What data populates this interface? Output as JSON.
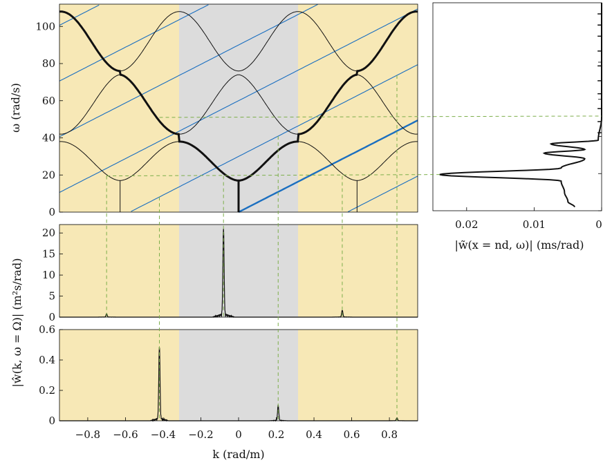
{
  "chart_data": [
    {
      "id": "dispersion",
      "type": "line",
      "xlim": [
        -0.95,
        0.95
      ],
      "ylim": [
        0,
        112
      ],
      "xlabel": "",
      "ylabel": "ω (rad/s)",
      "yticks": [
        0,
        20,
        40,
        60,
        80,
        100
      ],
      "band_edges": [
        -0.3142,
        0.3142
      ],
      "colors": {
        "passband": "#f7e8b6",
        "brillouin_zone": "#dcdcdc",
        "lines": "#1b6fc0",
        "curves": "#111111",
        "guides": "#7cae4a"
      },
      "bands": [
        {
          "k": [
            0,
            0.314
          ],
          "omega": [
            17,
            38
          ]
        },
        {
          "k": [
            0,
            0.314
          ],
          "omega": [
            74,
            42
          ]
        },
        {
          "k": [
            0,
            0.314
          ],
          "omega": [
            76,
            108
          ]
        }
      ],
      "blue_lines_slope": 52,
      "blue_lines_intercepts": [
        -60,
        -30,
        0,
        30,
        60,
        90,
        120,
        150
      ],
      "highlighted_line": {
        "intercept": 0
      }
    },
    {
      "id": "spectrum_top",
      "type": "line",
      "xlim": [
        -0.95,
        0.95
      ],
      "ylim": [
        0,
        22
      ],
      "yticks": [
        0,
        5,
        10,
        15,
        20
      ],
      "peaks": [
        {
          "k": -0.7,
          "value": 0.8
        },
        {
          "k": -0.08,
          "value": 21
        },
        {
          "k": 0.55,
          "value": 1.6
        }
      ]
    },
    {
      "id": "spectrum_bottom",
      "type": "line",
      "xlim": [
        -0.95,
        0.95
      ],
      "ylim": [
        0,
        0.6
      ],
      "yticks": [
        0,
        0.2,
        0.4,
        0.6
      ],
      "xticks": [
        -0.8,
        -0.6,
        -0.4,
        -0.2,
        0,
        0.2,
        0.4,
        0.6,
        0.8
      ],
      "xlabel": "k (rad/m)",
      "peaks": [
        {
          "k": -0.42,
          "value": 0.48
        },
        {
          "k": 0.21,
          "value": 0.1
        },
        {
          "k": 0.84,
          "value": 0.02
        }
      ]
    },
    {
      "id": "frequency_response",
      "type": "line",
      "xlim": [
        0.025,
        0
      ],
      "ylim": [
        0,
        112
      ],
      "xticks": [
        0.02,
        0.01,
        0
      ],
      "xlabel": "|w̃(x = nd, ω)| (ms/rad)",
      "points": [
        [
          0.004,
          2
        ],
        [
          0.005,
          5
        ],
        [
          0.0055,
          10
        ],
        [
          0.006,
          16
        ],
        [
          0.024,
          19.5
        ],
        [
          0.006,
          23
        ],
        [
          0.0025,
          28
        ],
        [
          0.0085,
          31
        ],
        [
          0.0025,
          33
        ],
        [
          0.0075,
          36
        ],
        [
          0.0005,
          38
        ],
        [
          0.0,
          50
        ]
      ]
    }
  ],
  "shared_ylabel": "|ŵ(k, ω = Ω)| (m²s/rad)",
  "guide_points": {
    "omega_20": [
      -0.7,
      -0.08,
      0.55
    ],
    "omega_51": [
      -0.42,
      0.21,
      0.84
    ]
  }
}
